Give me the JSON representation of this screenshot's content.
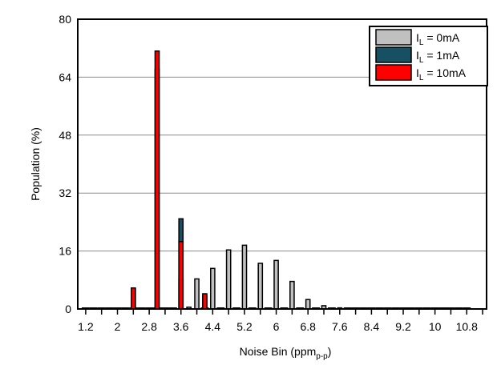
{
  "chart_data": {
    "type": "bar",
    "title": "",
    "xlabel": {
      "main": "Noise Bin (ppm",
      "sub": "p-p",
      "close": ")"
    },
    "ylabel": "Population (%)",
    "ylim": [
      0,
      80
    ],
    "xlim": [
      1.0,
      11.3
    ],
    "y_ticks": [
      0,
      16,
      32,
      48,
      64,
      80
    ],
    "x_ticks": [
      1.2,
      2,
      2.8,
      3.6,
      4.4,
      5.2,
      6,
      6.8,
      7.6,
      8.4,
      9.2,
      10,
      10.8
    ],
    "grid": true,
    "legend_position": "top-right",
    "bin_width": 0.2,
    "x": [
      1.2,
      1.4,
      1.6,
      1.8,
      2.0,
      2.2,
      2.4,
      2.6,
      2.8,
      3.0,
      3.2,
      3.4,
      3.6,
      3.8,
      4.0,
      4.2,
      4.4,
      4.6,
      4.8,
      5.0,
      5.2,
      5.4,
      5.6,
      5.8,
      6.0,
      6.2,
      6.4,
      6.6,
      6.8,
      7.0,
      7.2,
      7.4,
      7.6,
      7.8,
      8.0,
      8.2,
      8.4,
      8.6,
      8.8,
      9.0,
      9.2,
      9.4,
      9.6,
      9.8,
      10.0,
      10.2,
      10.4,
      10.6,
      10.8
    ],
    "series": [
      {
        "name": "IL = 0mA",
        "label_main": "I",
        "label_sub": "L",
        "label_rest": " = 0mA",
        "color": "#c0c0c0",
        "values": [
          0,
          0,
          0,
          0,
          0,
          0,
          0,
          0,
          0,
          0,
          0,
          0,
          8.2,
          0.5,
          8.3,
          0,
          11.2,
          0,
          16.3,
          0,
          17.6,
          0,
          12.6,
          0,
          13.4,
          0,
          7.6,
          0,
          2.6,
          0,
          0.9,
          0,
          0.3,
          0,
          0,
          0,
          0,
          0,
          0,
          0,
          0,
          0,
          0,
          0,
          0,
          0,
          0,
          0,
          0
        ]
      },
      {
        "name": "IL = 1mA",
        "label_main": "I",
        "label_sub": "L",
        "label_rest": " = 1mA",
        "color": "#174f63",
        "values": [
          0,
          0,
          0,
          0,
          0,
          0,
          5.6,
          0,
          0,
          66.2,
          0,
          0,
          24.9,
          0,
          0,
          3.6,
          0,
          0,
          0,
          0,
          0,
          0,
          0,
          0,
          0,
          0,
          0,
          0,
          0,
          0,
          0,
          0,
          0,
          0,
          0,
          0,
          0,
          0,
          0,
          0,
          0,
          0,
          0,
          0,
          0,
          0,
          0,
          0,
          0
        ]
      },
      {
        "name": "IL = 10mA",
        "label_main": "I",
        "label_sub": "L",
        "label_rest": " = 10mA",
        "color": "#ff0000",
        "values": [
          0,
          0,
          0,
          0,
          0,
          0,
          5.8,
          0,
          0,
          71.2,
          0,
          0,
          18.6,
          0,
          0,
          4.2,
          0,
          0,
          0,
          0,
          0,
          0,
          0,
          0,
          0,
          0,
          0,
          0,
          0,
          0,
          0,
          0,
          0,
          0,
          0,
          0,
          0,
          0,
          0,
          0,
          0,
          0,
          0,
          0,
          0,
          0,
          0,
          0,
          0
        ]
      }
    ]
  }
}
